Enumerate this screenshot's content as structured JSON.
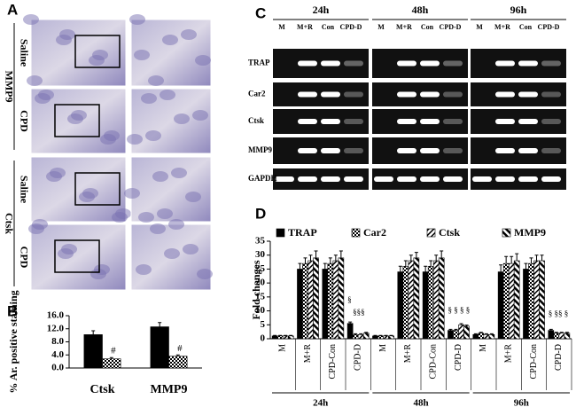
{
  "figure": {
    "panel_labels": [
      "A",
      "B",
      "C",
      "D"
    ],
    "histology": {
      "markers": [
        "MMP9",
        "Ctsk"
      ],
      "conditions": [
        "Saline",
        "CPD",
        "Saline",
        "CPD"
      ]
    },
    "gel": {
      "times": [
        "24h",
        "48h",
        "96h"
      ],
      "lanes": [
        "M",
        "M+R",
        "Con",
        "CPD-D"
      ],
      "genes": [
        "TRAP",
        "Car2",
        "Ctsk",
        "MMP9",
        "GAPDH"
      ]
    }
  },
  "chart_data": [
    {
      "type": "bar",
      "y_label": "% Ar. positive staining",
      "categories": [
        "Ctsk",
        "MMP9"
      ],
      "series": [
        {
          "color": "#000000",
          "pattern": "solid",
          "values": [
            10.2,
            12.6
          ],
          "errors": [
            1.2,
            1.3
          ]
        },
        {
          "color": "#000000",
          "pattern": "checker",
          "values": [
            2.8,
            3.6
          ],
          "errors": [
            0.4,
            0.4
          ]
        }
      ],
      "annotations": [
        "#",
        "#"
      ],
      "ylim": [
        0,
        16
      ],
      "yticks": [
        {
          "value": 0,
          "label": "0.0"
        },
        {
          "value": 4,
          "label": "4.0"
        },
        {
          "value": 8,
          "label": "8.0"
        },
        {
          "value": 12,
          "label": "12.0"
        },
        {
          "value": 16,
          "label": "16.0"
        }
      ]
    },
    {
      "type": "bar",
      "y_label": "Fold changes",
      "categories": [
        "M",
        "M+R",
        "CPD-Con",
        "CPD-D",
        "M",
        "M+R",
        "CPD-Con",
        "CPD-D",
        "M",
        "M+R",
        "CPD-Con",
        "CPD-D"
      ],
      "groups": [
        "24h",
        "48h",
        "96h"
      ],
      "series": [
        {
          "name": "TRAP",
          "color": "#000000",
          "pattern": "solid",
          "values": [
            1,
            25,
            25,
            5.5,
            1,
            24,
            24,
            3,
            1.5,
            24,
            25,
            3
          ],
          "errors": [
            0.2,
            2,
            2,
            0.5,
            0.2,
            2,
            2,
            0.4,
            0.3,
            2.5,
            2,
            0.4
          ]
        },
        {
          "name": "Car2",
          "color": "#000000",
          "pattern": "checker",
          "values": [
            1,
            27,
            27,
            1.5,
            1,
            26,
            26,
            3,
            2,
            27,
            27,
            2
          ],
          "errors": [
            0.2,
            2,
            2,
            0.3,
            0.2,
            2,
            2,
            0.4,
            0.3,
            2.5,
            2,
            0.3
          ]
        },
        {
          "name": "Ctsk",
          "color": "#000000",
          "pattern": "stripes",
          "values": [
            1,
            28,
            28,
            1.5,
            1,
            28,
            28,
            5,
            1.5,
            27,
            28,
            2
          ],
          "errors": [
            0.2,
            2,
            2,
            0.3,
            0.2,
            2,
            2,
            0.4,
            0.3,
            2.5,
            2,
            0.3
          ]
        },
        {
          "name": "MMP9",
          "color": "#000000",
          "pattern": "hatch",
          "values": [
            1,
            29,
            29,
            2,
            1,
            29,
            29,
            4.5,
            1.5,
            28,
            28,
            2
          ],
          "errors": [
            0.2,
            2.5,
            2.5,
            0.3,
            0.2,
            2,
            2.5,
            0.4,
            0.3,
            2.5,
            2,
            0.3
          ]
        }
      ],
      "annotations": [
        "§",
        "§§§",
        "§ § § §",
        "§ §§ §"
      ],
      "ylim": [
        0,
        35
      ],
      "yticks": [
        0,
        5,
        10,
        15,
        20,
        25,
        30,
        35
      ],
      "legend": "top"
    }
  ]
}
